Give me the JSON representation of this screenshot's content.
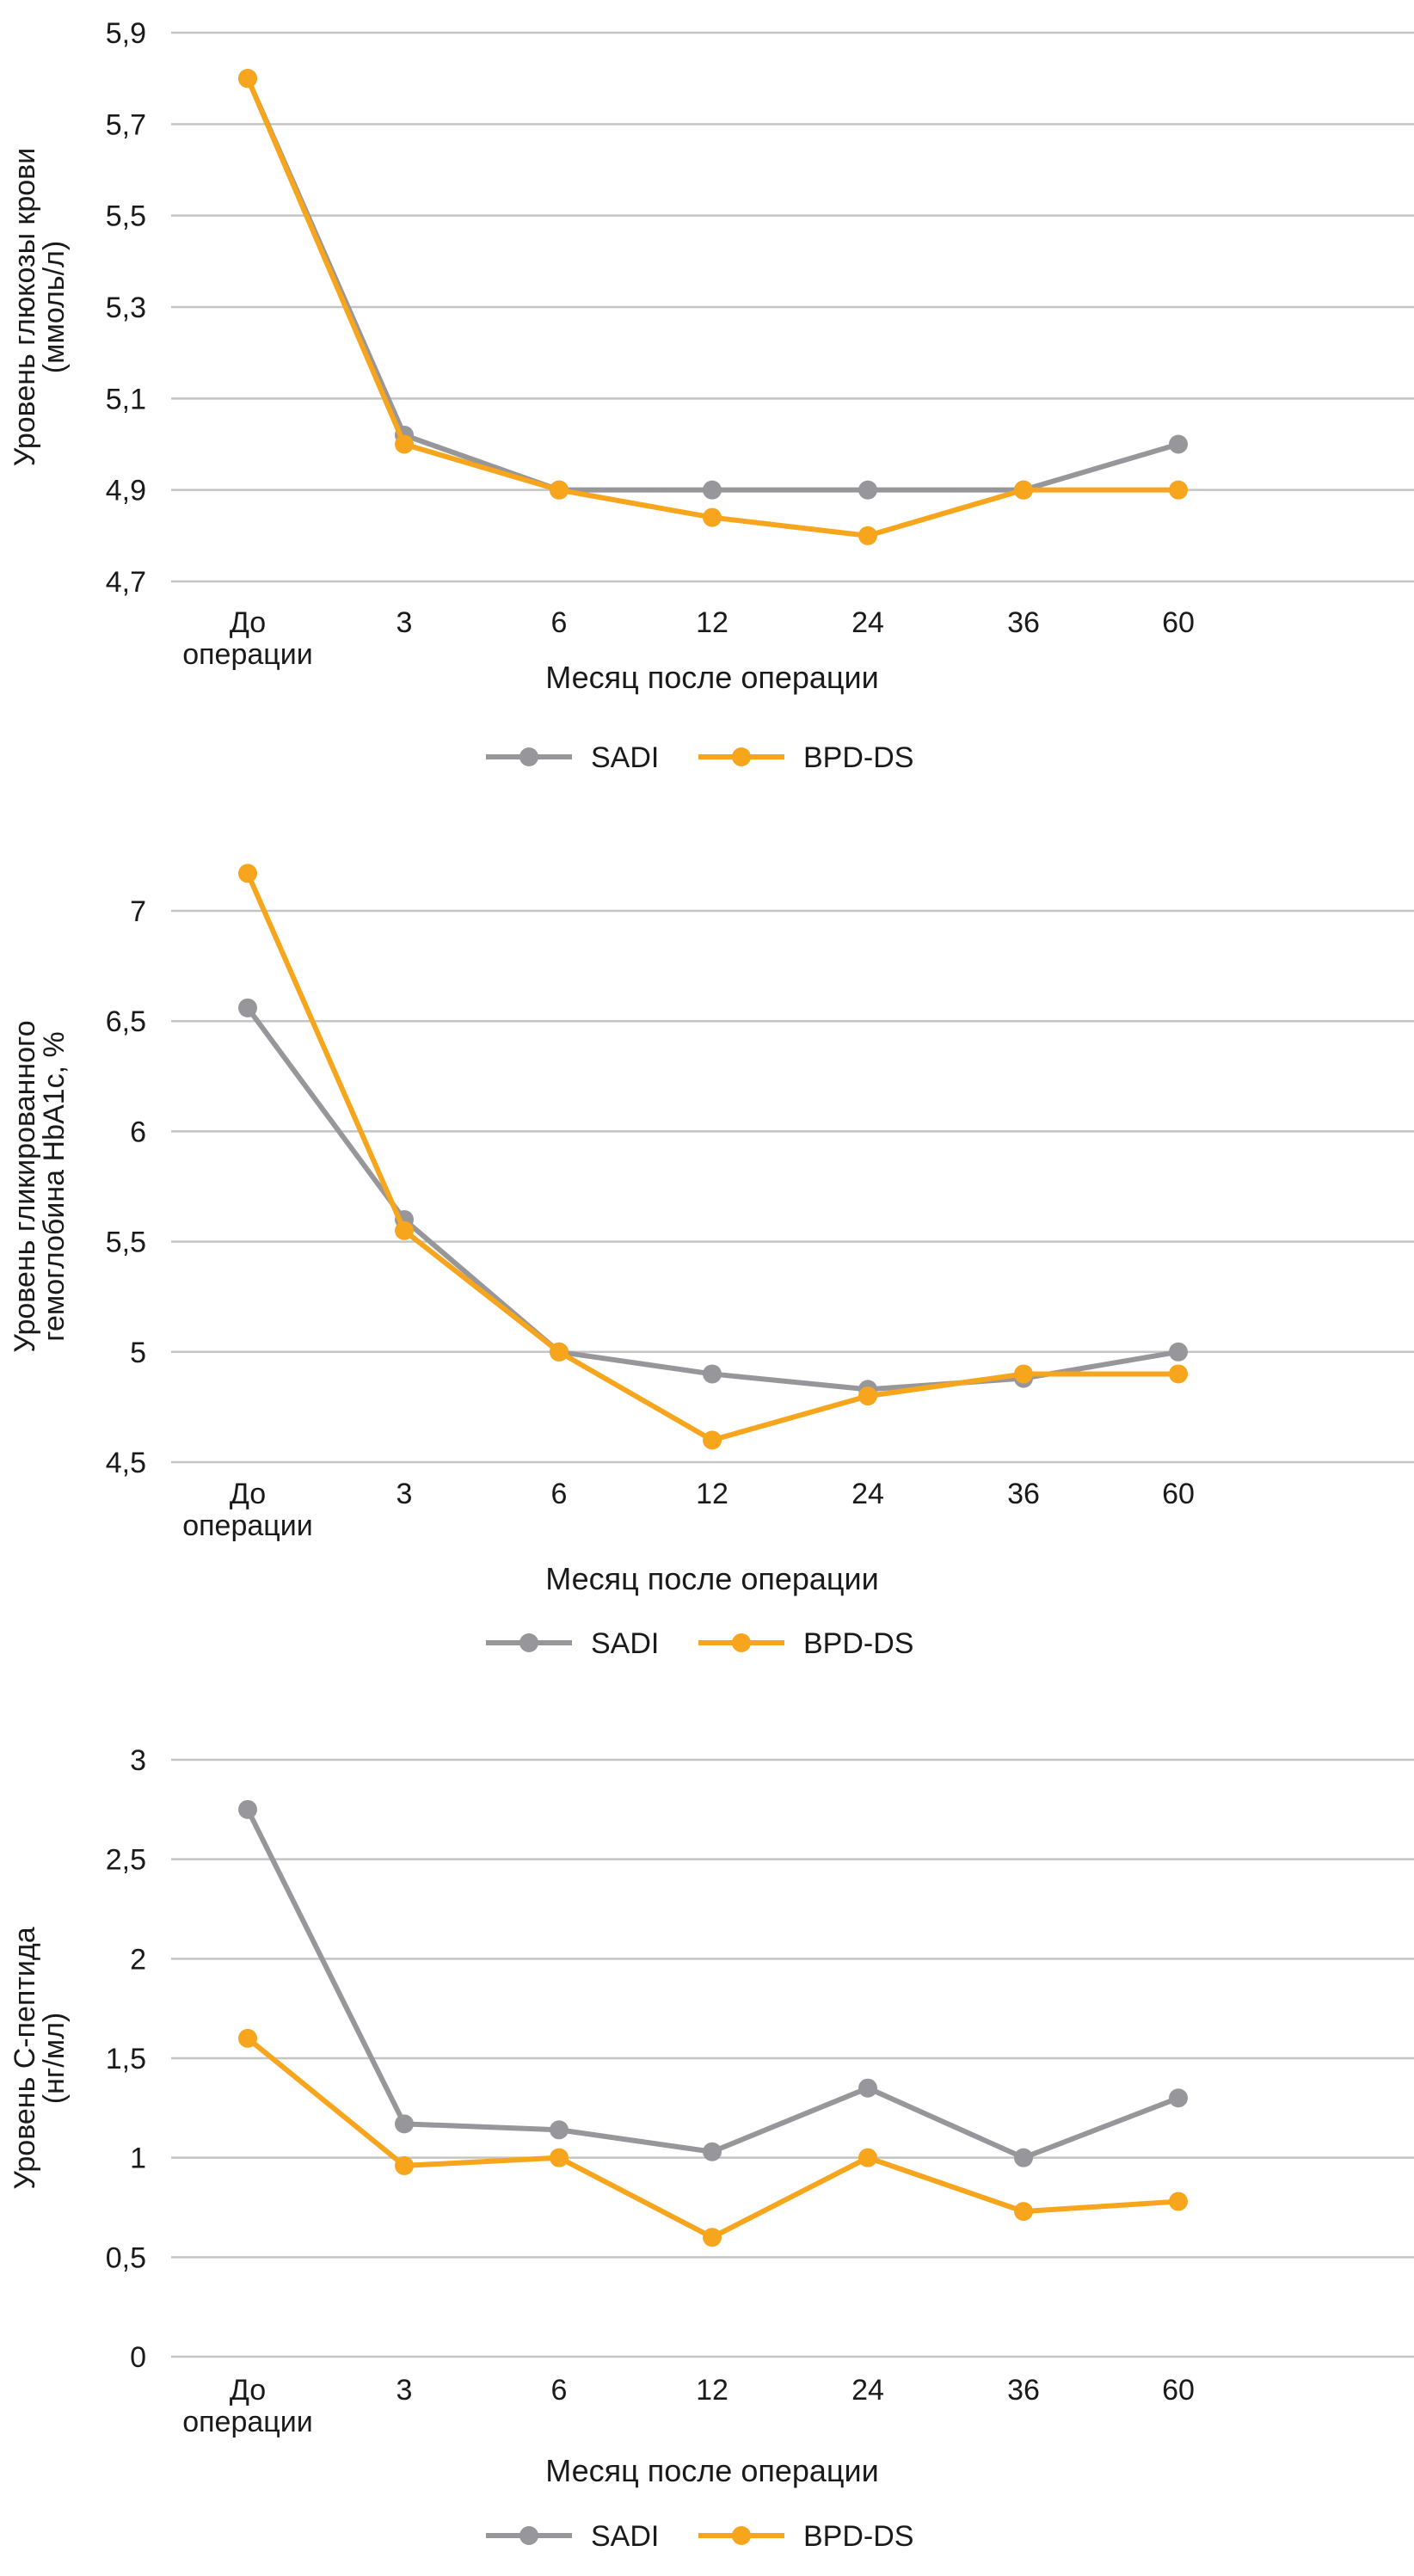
{
  "chart_data": [
    {
      "type": "line",
      "title": "",
      "ylabel": [
        "Уровень глюкозы крови",
        "(ммоль/л)"
      ],
      "xlabel": "Месяц после операции",
      "categories": [
        [
          "До",
          "операции"
        ],
        [
          "3"
        ],
        [
          "6"
        ],
        [
          "12"
        ],
        [
          "24"
        ],
        [
          "36"
        ],
        [
          "60"
        ]
      ],
      "ylim": [
        4.7,
        5.9
      ],
      "yticks": [
        4.7,
        4.9,
        5.1,
        5.3,
        5.5,
        5.7,
        5.9
      ],
      "ytick_labels": [
        "4,7",
        "4,9",
        "5,1",
        "5,3",
        "5,5",
        "5,7",
        "5,9"
      ],
      "grid": true,
      "legend_position": "bottom-center",
      "series": [
        {
          "name": "SADI",
          "color": "#97979b",
          "values": [
            5.8,
            5.02,
            4.9,
            4.9,
            4.9,
            4.9,
            5.0
          ]
        },
        {
          "name": "BPD-DS",
          "color": "#f6a51c",
          "values": [
            5.8,
            5.0,
            4.9,
            4.84,
            4.8,
            4.9,
            4.9
          ]
        }
      ]
    },
    {
      "type": "line",
      "title": "",
      "ylabel": [
        "Уровень гликированного",
        "гемоглобина HbA1c, %"
      ],
      "ylabel_sub": "1c",
      "xlabel": "Месяц после операции",
      "categories": [
        [
          "До",
          "операции"
        ],
        [
          "3"
        ],
        [
          "6"
        ],
        [
          "12"
        ],
        [
          "24"
        ],
        [
          "36"
        ],
        [
          "60"
        ]
      ],
      "ylim": [
        4.5,
        7.2
      ],
      "yticks": [
        4.5,
        5,
        5.5,
        6,
        6.5,
        7
      ],
      "ytick_labels": [
        "4,5",
        "5",
        "5,5",
        "6",
        "6,5",
        "7"
      ],
      "grid": true,
      "legend_position": "bottom-center",
      "series": [
        {
          "name": "SADI",
          "color": "#97979b",
          "values": [
            6.56,
            5.6,
            5.0,
            4.9,
            4.83,
            4.88,
            5.0
          ]
        },
        {
          "name": "BPD-DS",
          "color": "#f6a51c",
          "values": [
            7.17,
            5.55,
            5.0,
            4.6,
            4.8,
            4.9,
            4.9
          ]
        }
      ]
    },
    {
      "type": "line",
      "title": "",
      "ylabel": [
        "Уровень С-пептида",
        "(нг/мл)"
      ],
      "xlabel": "Месяц после операции",
      "categories": [
        [
          "До",
          "операции"
        ],
        [
          "3"
        ],
        [
          "6"
        ],
        [
          "12"
        ],
        [
          "24"
        ],
        [
          "36"
        ],
        [
          "60"
        ]
      ],
      "ylim": [
        0,
        3
      ],
      "yticks": [
        0,
        0.5,
        1,
        1.5,
        2,
        2.5,
        3
      ],
      "ytick_labels": [
        "0",
        "0,5",
        "1",
        "1,5",
        "2",
        "2,5",
        "3"
      ],
      "grid": true,
      "legend_position": "bottom-center",
      "series": [
        {
          "name": "SADI",
          "color": "#97979b",
          "values": [
            2.75,
            1.17,
            1.14,
            1.03,
            1.35,
            1.0,
            1.3
          ]
        },
        {
          "name": "BPD-DS",
          "color": "#f6a51c",
          "values": [
            1.6,
            0.96,
            1.0,
            0.6,
            1.0,
            0.73,
            0.78
          ]
        }
      ]
    }
  ]
}
